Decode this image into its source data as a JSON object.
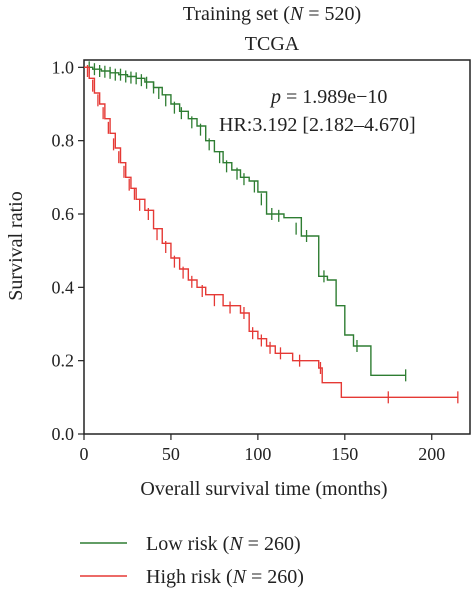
{
  "chart_data": {
    "type": "line",
    "subtype": "kaplan-meier",
    "title_line1": "Training set (",
    "title_n_symbol": "N",
    "title_n_value": " = 520)",
    "subtitle": "TCGA",
    "xlabel": "Overall survival time (months)",
    "ylabel": "Survival ratio",
    "xlim": [
      0,
      222
    ],
    "ylim": [
      0.0,
      1.02
    ],
    "xticks": [
      0,
      50,
      100,
      150,
      200
    ],
    "yticks": [
      0.0,
      0.2,
      0.4,
      0.6,
      0.8,
      1.0
    ],
    "xtick_labels": [
      "0",
      "50",
      "100",
      "150",
      "200"
    ],
    "ytick_labels": [
      "0.0",
      "0.2",
      "0.4",
      "0.6",
      "0.8",
      "1.0"
    ],
    "grid": false,
    "annotations": {
      "p_symbol": "p",
      "p_text": " = 1.989e−10",
      "hr_text": "HR:3.192 [2.182–4.670]"
    },
    "legend": {
      "placement": "bottom",
      "items": [
        {
          "prefix": "Low risk (",
          "n_symbol": "N",
          "suffix": " = 260)",
          "color": "#2e7d32"
        },
        {
          "prefix": "High risk (",
          "n_symbol": "N",
          "suffix": " = 260)",
          "color": "#e53935"
        }
      ]
    },
    "series": [
      {
        "name": "Low risk",
        "color": "#2e7d32",
        "steps": [
          [
            0,
            1.0
          ],
          [
            5,
            0.995
          ],
          [
            10,
            0.99
          ],
          [
            15,
            0.985
          ],
          [
            20,
            0.98
          ],
          [
            25,
            0.975
          ],
          [
            30,
            0.97
          ],
          [
            35,
            0.96
          ],
          [
            40,
            0.945
          ],
          [
            45,
            0.925
          ],
          [
            50,
            0.9
          ],
          [
            55,
            0.88
          ],
          [
            60,
            0.86
          ],
          [
            65,
            0.84
          ],
          [
            70,
            0.8
          ],
          [
            75,
            0.77
          ],
          [
            80,
            0.74
          ],
          [
            85,
            0.72
          ],
          [
            90,
            0.7
          ],
          [
            95,
            0.69
          ],
          [
            100,
            0.66
          ],
          [
            105,
            0.6
          ],
          [
            115,
            0.59
          ],
          [
            125,
            0.54
          ],
          [
            135,
            0.43
          ],
          [
            140,
            0.42
          ],
          [
            145,
            0.35
          ],
          [
            150,
            0.27
          ],
          [
            155,
            0.24
          ],
          [
            165,
            0.16
          ],
          [
            185,
            0.16
          ]
        ],
        "censors": [
          [
            3,
            1.0
          ],
          [
            6,
            0.995
          ],
          [
            9,
            0.99
          ],
          [
            12,
            0.988
          ],
          [
            15,
            0.985
          ],
          [
            18,
            0.98
          ],
          [
            21,
            0.98
          ],
          [
            24,
            0.975
          ],
          [
            27,
            0.972
          ],
          [
            30,
            0.97
          ],
          [
            33,
            0.965
          ],
          [
            36,
            0.958
          ],
          [
            40,
            0.945
          ],
          [
            43,
            0.93
          ],
          [
            47,
            0.91
          ],
          [
            52,
            0.89
          ],
          [
            56,
            0.875
          ],
          [
            62,
            0.85
          ],
          [
            67,
            0.83
          ],
          [
            72,
            0.79
          ],
          [
            78,
            0.755
          ],
          [
            82,
            0.73
          ],
          [
            88,
            0.71
          ],
          [
            92,
            0.695
          ],
          [
            98,
            0.675
          ],
          [
            102,
            0.64
          ],
          [
            108,
            0.6
          ],
          [
            112,
            0.595
          ],
          [
            122,
            0.56
          ],
          [
            128,
            0.54
          ],
          [
            138,
            0.43
          ],
          [
            157,
            0.24
          ],
          [
            185,
            0.16
          ]
        ]
      },
      {
        "name": "High risk",
        "color": "#e53935",
        "steps": [
          [
            0,
            1.0
          ],
          [
            3,
            0.97
          ],
          [
            6,
            0.93
          ],
          [
            9,
            0.9
          ],
          [
            12,
            0.86
          ],
          [
            15,
            0.82
          ],
          [
            18,
            0.78
          ],
          [
            21,
            0.74
          ],
          [
            24,
            0.7
          ],
          [
            27,
            0.67
          ],
          [
            30,
            0.64
          ],
          [
            35,
            0.61
          ],
          [
            40,
            0.56
          ],
          [
            45,
            0.52
          ],
          [
            50,
            0.48
          ],
          [
            55,
            0.45
          ],
          [
            60,
            0.42
          ],
          [
            65,
            0.4
          ],
          [
            70,
            0.38
          ],
          [
            80,
            0.35
          ],
          [
            90,
            0.33
          ],
          [
            95,
            0.28
          ],
          [
            100,
            0.26
          ],
          [
            105,
            0.24
          ],
          [
            110,
            0.22
          ],
          [
            120,
            0.2
          ],
          [
            135,
            0.18
          ],
          [
            137,
            0.14
          ],
          [
            148,
            0.1
          ],
          [
            175,
            0.1
          ],
          [
            215,
            0.1
          ]
        ],
        "censors": [
          [
            2,
            0.99
          ],
          [
            5,
            0.95
          ],
          [
            8,
            0.91
          ],
          [
            11,
            0.875
          ],
          [
            14,
            0.835
          ],
          [
            17,
            0.79
          ],
          [
            20,
            0.755
          ],
          [
            23,
            0.715
          ],
          [
            26,
            0.68
          ],
          [
            29,
            0.655
          ],
          [
            32,
            0.625
          ],
          [
            37,
            0.6
          ],
          [
            42,
            0.545
          ],
          [
            47,
            0.51
          ],
          [
            52,
            0.47
          ],
          [
            57,
            0.44
          ],
          [
            62,
            0.415
          ],
          [
            68,
            0.39
          ],
          [
            75,
            0.365
          ],
          [
            84,
            0.345
          ],
          [
            92,
            0.33
          ],
          [
            97,
            0.275
          ],
          [
            102,
            0.255
          ],
          [
            107,
            0.235
          ],
          [
            113,
            0.22
          ],
          [
            124,
            0.2
          ],
          [
            136,
            0.18
          ],
          [
            175,
            0.1
          ],
          [
            215,
            0.1
          ]
        ]
      }
    ]
  }
}
